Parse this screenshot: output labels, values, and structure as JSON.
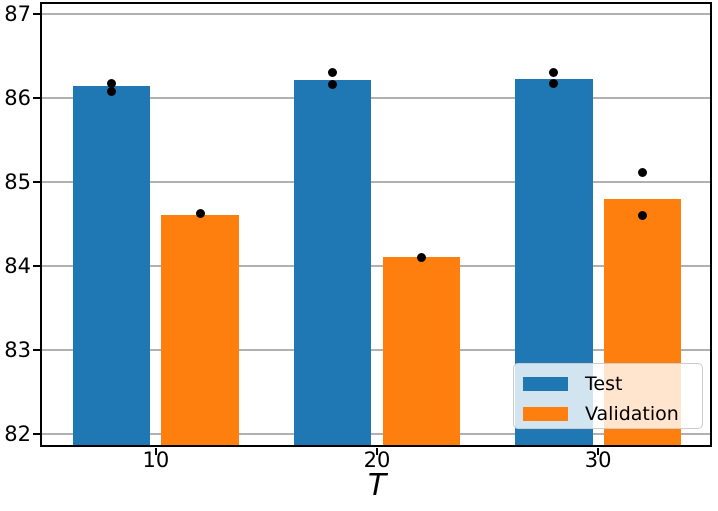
{
  "chart_data": {
    "type": "bar",
    "title": "",
    "xlabel": "T",
    "ylabel": "",
    "categories": [
      10,
      20,
      30
    ],
    "series": [
      {
        "name": "Test",
        "color": "#1f77b4",
        "values": [
          86.15,
          86.22,
          86.23
        ]
      },
      {
        "name": "Validation",
        "color": "#ff7f0e",
        "values": [
          84.61,
          84.11,
          84.8
        ]
      }
    ],
    "points": [
      {
        "series": "Test",
        "category": 10,
        "value": 86.18
      },
      {
        "series": "Test",
        "category": 10,
        "value": 86.08
      },
      {
        "series": "Test",
        "category": 20,
        "value": 86.31
      },
      {
        "series": "Test",
        "category": 20,
        "value": 86.16
      },
      {
        "series": "Test",
        "category": 30,
        "value": 86.3
      },
      {
        "series": "Test",
        "category": 30,
        "value": 86.18
      },
      {
        "series": "Validation",
        "category": 10,
        "value": 84.63
      },
      {
        "series": "Validation",
        "category": 20,
        "value": 84.1
      },
      {
        "series": "Validation",
        "category": 30,
        "value": 85.12
      },
      {
        "series": "Validation",
        "category": 30,
        "value": 84.6
      }
    ],
    "point_color": "#000000",
    "yticks": [
      87,
      86,
      85,
      84,
      83,
      82
    ],
    "xticks": [
      10,
      20,
      30
    ],
    "ylim": [
      81.85,
      87.12
    ],
    "xlim": [
      4.85,
      35.15
    ],
    "bar_width": 3.5,
    "bar_offsets": {
      "Test": -2,
      "Validation": 2
    },
    "grid": "horizontal",
    "grid_color": "#b0b0b0",
    "legend": {
      "position": "lower right",
      "entries": [
        "Test",
        "Validation"
      ],
      "border_color": "#cccccc"
    }
  }
}
